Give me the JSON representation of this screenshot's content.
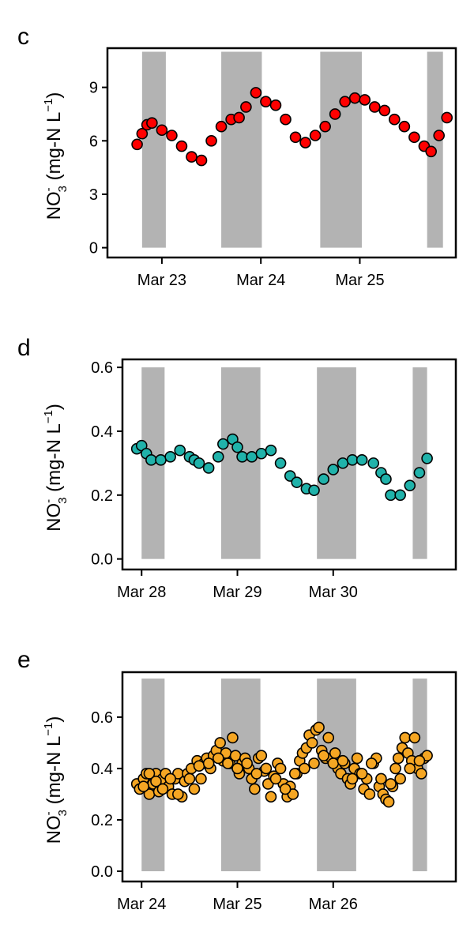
{
  "panel_labels": [
    "c",
    "d",
    "e"
  ],
  "colors": {
    "c": "#ff0000",
    "d": "#20b2aa",
    "e": "#f5a623",
    "night_band": "#b3b3b3",
    "point_outline": "#000000"
  },
  "chart_data": [
    {
      "type": "scatter",
      "panel": "c",
      "ylabel": {
        "base": "NO",
        "sub": "3",
        "sup": "-",
        "unit_pre": "(mg-N  L",
        "unit_sup": "−1",
        "unit_post": ")"
      },
      "x_unit": "days",
      "xtick_values": [
        1,
        2,
        3
      ],
      "xtick_labels": [
        "Mar 23",
        "Mar 24",
        "Mar 25"
      ],
      "xlim": [
        0.45,
        3.97
      ],
      "ytick_values": [
        0,
        3,
        6,
        9
      ],
      "ytick_labels": [
        "0",
        "3",
        "6",
        "9"
      ],
      "ylim": [
        -0.55,
        11.2
      ],
      "shading_ymax": 11,
      "night_bands": [
        [
          0.8,
          1.04
        ],
        [
          1.6,
          2.01
        ],
        [
          2.6,
          3.02
        ],
        [
          3.68,
          3.84
        ]
      ],
      "x": [
        0.75,
        0.8,
        0.85,
        0.9,
        1.0,
        1.1,
        1.2,
        1.3,
        1.4,
        1.5,
        1.6,
        1.7,
        1.78,
        1.85,
        1.95,
        2.05,
        2.15,
        2.25,
        2.35,
        2.45,
        2.55,
        2.65,
        2.75,
        2.85,
        2.95,
        3.05,
        3.15,
        3.25,
        3.35,
        3.45,
        3.55,
        3.65,
        3.72,
        3.8,
        3.88
      ],
      "y": [
        5.8,
        6.4,
        6.9,
        7.0,
        6.6,
        6.3,
        5.7,
        5.1,
        4.9,
        6.0,
        6.8,
        7.2,
        7.3,
        7.9,
        8.7,
        8.2,
        8.0,
        7.2,
        6.2,
        5.9,
        6.3,
        6.8,
        7.5,
        8.2,
        8.4,
        8.3,
        7.9,
        7.7,
        7.2,
        6.8,
        6.2,
        5.7,
        5.4,
        6.3,
        7.3
      ]
    },
    {
      "type": "scatter",
      "panel": "d",
      "ylabel": {
        "base": "NO",
        "sub": "3",
        "sup": "-",
        "unit_pre": "(mg-N  L",
        "unit_sup": "−1",
        "unit_post": ")"
      },
      "x_unit": "days",
      "xtick_values": [
        1,
        2,
        3
      ],
      "xtick_labels": [
        "Mar 28",
        "Mar 29",
        "Mar 30"
      ],
      "xlim": [
        0.8,
        4.28
      ],
      "ytick_values": [
        0.0,
        0.2,
        0.4,
        0.6
      ],
      "ytick_labels": [
        "0.0",
        "0.2",
        "0.4",
        "0.6"
      ],
      "ylim": [
        -0.033,
        0.625
      ],
      "shading_ymax": 0.6,
      "night_bands": [
        [
          1.0,
          1.24
        ],
        [
          1.83,
          2.24
        ],
        [
          2.83,
          3.24
        ],
        [
          3.83,
          3.98
        ]
      ],
      "x": [
        0.95,
        1.0,
        1.05,
        1.1,
        1.2,
        1.3,
        1.4,
        1.5,
        1.55,
        1.6,
        1.7,
        1.8,
        1.85,
        1.95,
        2.0,
        2.05,
        2.15,
        2.25,
        2.35,
        2.45,
        2.55,
        2.62,
        2.72,
        2.8,
        2.9,
        3.0,
        3.1,
        3.2,
        3.3,
        3.42,
        3.5,
        3.55,
        3.6,
        3.7,
        3.8,
        3.9,
        3.98
      ],
      "y": [
        0.345,
        0.355,
        0.33,
        0.31,
        0.31,
        0.32,
        0.34,
        0.32,
        0.31,
        0.3,
        0.285,
        0.32,
        0.36,
        0.375,
        0.35,
        0.32,
        0.32,
        0.33,
        0.34,
        0.3,
        0.26,
        0.24,
        0.22,
        0.215,
        0.25,
        0.28,
        0.3,
        0.31,
        0.31,
        0.3,
        0.27,
        0.25,
        0.2,
        0.2,
        0.23,
        0.27,
        0.315
      ]
    },
    {
      "type": "scatter",
      "panel": "e",
      "ylabel": {
        "base": "NO",
        "sub": "3",
        "sup": "-",
        "unit_pre": "(mg-N  L",
        "unit_sup": "−1",
        "unit_post": ")"
      },
      "x_unit": "days",
      "xtick_values": [
        1,
        2,
        3
      ],
      "xtick_labels": [
        "Mar 24",
        "Mar 25",
        "Mar 26"
      ],
      "xlim": [
        0.8,
        4.28
      ],
      "ytick_values": [
        0.0,
        0.2,
        0.4,
        0.6
      ],
      "ytick_labels": [
        "0.0",
        "0.2",
        "0.4",
        "0.6"
      ],
      "ylim": [
        -0.04,
        0.775
      ],
      "shading_ymax": 0.75,
      "night_bands": [
        [
          1.0,
          1.24
        ],
        [
          1.83,
          2.24
        ],
        [
          2.83,
          3.24
        ],
        [
          3.83,
          3.98
        ]
      ],
      "x": [
        0.95,
        0.98,
        1.02,
        1.05,
        1.08,
        1.12,
        1.15,
        1.18,
        1.22,
        1.25,
        1.28,
        1.32,
        1.35,
        1.38,
        1.42,
        1.45,
        1.48,
        1.52,
        1.55,
        1.58,
        1.62,
        1.65,
        1.68,
        1.72,
        1.75,
        1.78,
        1.82,
        1.85,
        1.88,
        1.92,
        1.95,
        1.98,
        2.02,
        2.05,
        2.08,
        2.12,
        2.15,
        2.18,
        2.22,
        2.25,
        2.28,
        2.32,
        2.35,
        2.38,
        2.42,
        2.45,
        2.48,
        2.52,
        2.55,
        2.58,
        2.62,
        2.65,
        2.68,
        2.72,
        2.75,
        2.78,
        2.82,
        2.85,
        2.88,
        2.92,
        2.95,
        2.98,
        3.02,
        3.05,
        3.08,
        3.12,
        3.15,
        3.18,
        3.22,
        3.25,
        3.28,
        3.32,
        3.35,
        3.38,
        3.42,
        3.45,
        3.48,
        3.52,
        3.55,
        3.58,
        3.62,
        3.65,
        3.68,
        3.72,
        3.75,
        3.78,
        3.82,
        3.85,
        3.88,
        3.92,
        3.95,
        3.98,
        1.02,
        1.08,
        1.15,
        1.22,
        1.3,
        1.38,
        1.5,
        1.6,
        1.7,
        1.8,
        1.9,
        2.0,
        2.1,
        2.2,
        2.3,
        2.4,
        2.5,
        2.6,
        2.7,
        2.8,
        2.9,
        3.0,
        3.1,
        3.2,
        3.3,
        3.4,
        3.5,
        3.6,
        3.7,
        3.8,
        3.9
      ],
      "y": [
        0.34,
        0.32,
        0.36,
        0.38,
        0.3,
        0.34,
        0.38,
        0.31,
        0.36,
        0.38,
        0.33,
        0.3,
        0.36,
        0.38,
        0.29,
        0.35,
        0.38,
        0.4,
        0.32,
        0.43,
        0.36,
        0.42,
        0.44,
        0.4,
        0.45,
        0.47,
        0.5,
        0.43,
        0.46,
        0.42,
        0.52,
        0.45,
        0.38,
        0.42,
        0.44,
        0.4,
        0.36,
        0.32,
        0.44,
        0.45,
        0.39,
        0.34,
        0.29,
        0.37,
        0.42,
        0.4,
        0.34,
        0.29,
        0.33,
        0.3,
        0.38,
        0.43,
        0.46,
        0.48,
        0.53,
        0.5,
        0.55,
        0.56,
        0.47,
        0.44,
        0.52,
        0.44,
        0.46,
        0.4,
        0.38,
        0.42,
        0.36,
        0.34,
        0.4,
        0.44,
        0.38,
        0.32,
        0.36,
        0.3,
        0.42,
        0.44,
        0.33,
        0.3,
        0.28,
        0.27,
        0.33,
        0.4,
        0.44,
        0.48,
        0.52,
        0.46,
        0.43,
        0.52,
        0.4,
        0.38,
        0.44,
        0.45,
        0.33,
        0.38,
        0.35,
        0.32,
        0.36,
        0.3,
        0.36,
        0.41,
        0.42,
        0.44,
        0.42,
        0.4,
        0.42,
        0.38,
        0.4,
        0.36,
        0.32,
        0.38,
        0.4,
        0.42,
        0.45,
        0.42,
        0.43,
        0.36,
        0.38,
        0.42,
        0.36,
        0.34,
        0.36,
        0.4,
        0.43
      ]
    }
  ]
}
